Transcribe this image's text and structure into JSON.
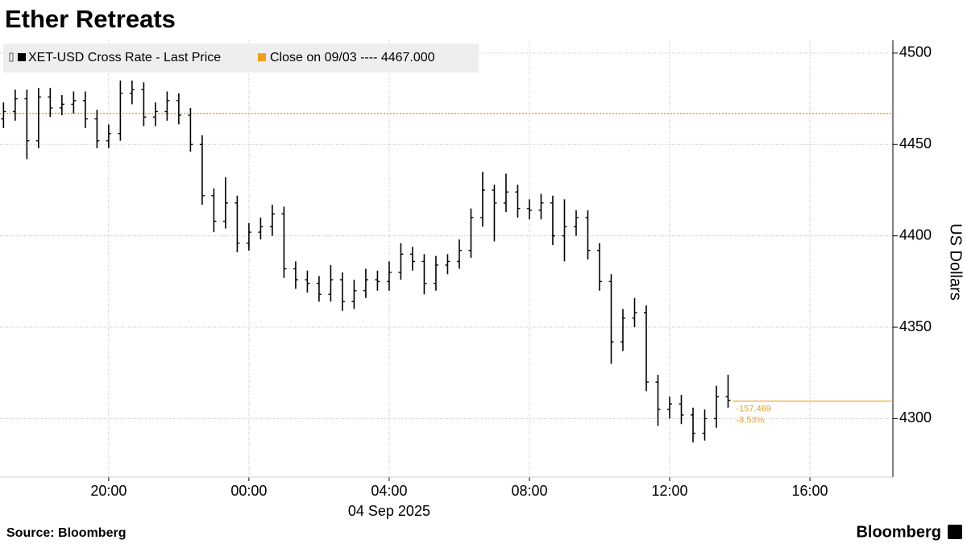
{
  "chart_data": {
    "type": "ohlc",
    "title": "Ether Retreats",
    "source": "Source: Bloomberg",
    "brand": "Bloomberg",
    "y_axis_label": "US Dollars",
    "x_date_label": "04 Sep 2025",
    "x": [
      "2025-09-03T17:00",
      "2025-09-03T17:20",
      "2025-09-03T17:40",
      "2025-09-03T18:00",
      "2025-09-03T18:20",
      "2025-09-03T18:40",
      "2025-09-03T19:00",
      "2025-09-03T19:20",
      "2025-09-03T19:40",
      "2025-09-03T20:00",
      "2025-09-03T20:20",
      "2025-09-03T20:40",
      "2025-09-03T21:00",
      "2025-09-03T21:20",
      "2025-09-03T21:40",
      "2025-09-03T22:00",
      "2025-09-03T22:20",
      "2025-09-03T22:40",
      "2025-09-03T23:00",
      "2025-09-03T23:20",
      "2025-09-03T23:40",
      "2025-09-04T00:00",
      "2025-09-04T00:20",
      "2025-09-04T00:40",
      "2025-09-04T01:00",
      "2025-09-04T01:20",
      "2025-09-04T01:40",
      "2025-09-04T02:00",
      "2025-09-04T02:20",
      "2025-09-04T02:40",
      "2025-09-04T03:00",
      "2025-09-04T03:20",
      "2025-09-04T03:40",
      "2025-09-04T04:00",
      "2025-09-04T04:20",
      "2025-09-04T04:40",
      "2025-09-04T05:00",
      "2025-09-04T05:20",
      "2025-09-04T05:40",
      "2025-09-04T06:00",
      "2025-09-04T06:20",
      "2025-09-04T06:40",
      "2025-09-04T07:00",
      "2025-09-04T07:20",
      "2025-09-04T07:40",
      "2025-09-04T08:00",
      "2025-09-04T08:20",
      "2025-09-04T08:40",
      "2025-09-04T09:00",
      "2025-09-04T09:20",
      "2025-09-04T09:40",
      "2025-09-04T10:00",
      "2025-09-04T10:20",
      "2025-09-04T10:40",
      "2025-09-04T11:00",
      "2025-09-04T11:20",
      "2025-09-04T11:40",
      "2025-09-04T12:00",
      "2025-09-04T12:20",
      "2025-09-04T12:40",
      "2025-09-04T13:00",
      "2025-09-04T13:20",
      "2025-09-04T13:40"
    ],
    "series": [
      {
        "name": "XET-USD Cross Rate - Last Price",
        "color": "#000000",
        "open": [
          4464,
          4468,
          4475,
          4452,
          4476,
          4470,
          4472,
          4474,
          4464,
          4452,
          4456,
          4478,
          4480,
          4465,
          4468,
          4474,
          4466,
          4450,
          4422,
          4408,
          4418,
          4396,
          4402,
          4405,
          4412,
          4382,
          4376,
          4374,
          4368,
          4376,
          4364,
          4370,
          4376,
          4375,
          4380,
          4390,
          4386,
          4374,
          4384,
          4386,
          4392,
          4410,
          4425,
          4418,
          4424,
          4415,
          4414,
          4418,
          4400,
          4405,
          4410,
          4392,
          4375,
          4342,
          4355,
          4358,
          4320,
          4305,
          4308,
          4302,
          4292,
          4300,
          4312
        ],
        "high": [
          4473,
          4480,
          4480,
          4481,
          4481,
          4477,
          4479,
          4479,
          4469,
          4461,
          4485,
          4485,
          4484,
          4473,
          4479,
          4478,
          4470,
          4455,
          4426,
          4432,
          4422,
          4407,
          4410,
          4417,
          4416,
          4386,
          4381,
          4378,
          4384,
          4380,
          4376,
          4382,
          4381,
          4386,
          4396,
          4394,
          4390,
          4389,
          4390,
          4398,
          4415,
          4435,
          4428,
          4434,
          4428,
          4420,
          4423,
          4422,
          4420,
          4414,
          4414,
          4396,
          4379,
          4360,
          4366,
          4362,
          4324,
          4312,
          4313,
          4306,
          4305,
          4318,
          4324
        ],
        "low": [
          4459,
          4463,
          4442,
          4448,
          4465,
          4466,
          4467,
          4459,
          4448,
          4448,
          4452,
          4472,
          4460,
          4460,
          4463,
          4461,
          4446,
          4417,
          4402,
          4404,
          4391,
          4392,
          4398,
          4400,
          4377,
          4371,
          4369,
          4364,
          4364,
          4359,
          4360,
          4366,
          4370,
          4370,
          4376,
          4381,
          4368,
          4370,
          4379,
          4382,
          4388,
          4405,
          4397,
          4413,
          4410,
          4409,
          4409,
          4395,
          4386,
          4400,
          4387,
          4370,
          4330,
          4337,
          4350,
          4315,
          4296,
          4300,
          4297,
          4287,
          4288,
          4295,
          4306
        ],
        "close": [
          4468,
          4475,
          4452,
          4476,
          4470,
          4472,
          4474,
          4464,
          4452,
          4456,
          4478,
          4480,
          4465,
          4468,
          4474,
          4466,
          4450,
          4422,
          4408,
          4418,
          4396,
          4402,
          4405,
          4412,
          4382,
          4376,
          4374,
          4368,
          4376,
          4364,
          4370,
          4376,
          4375,
          4380,
          4390,
          4386,
          4374,
          4384,
          4386,
          4392,
          4410,
          4425,
          4418,
          4424,
          4415,
          4414,
          4418,
          4400,
          4405,
          4410,
          4392,
          4375,
          4342,
          4355,
          4358,
          4320,
          4305,
          4308,
          4302,
          4292,
          4300,
          4312,
          4310
        ]
      }
    ],
    "reference_line": {
      "name": "Close on 09/03 ---- 4467.000",
      "value": 4467,
      "color": "#f0a020"
    },
    "last_price_line": {
      "value": 4309.531,
      "color": "#f0a020",
      "labels": [
        "-157.469",
        "-3.53%"
      ]
    },
    "xlim": [
      "2025-09-03T16:54",
      "2025-09-04T18:22"
    ],
    "xticks": [
      {
        "value": "2025-09-03T20:00",
        "label": "20:00"
      },
      {
        "value": "2025-09-04T00:00",
        "label": "00:00"
      },
      {
        "value": "2025-09-04T04:00",
        "label": "04:00"
      },
      {
        "value": "2025-09-04T08:00",
        "label": "08:00"
      },
      {
        "value": "2025-09-04T12:00",
        "label": "12:00"
      },
      {
        "value": "2025-09-04T16:00",
        "label": "16:00"
      }
    ],
    "ylim": [
      4268,
      4507
    ],
    "yticks": [
      4300,
      4350,
      4400,
      4450,
      4500
    ],
    "grid": true
  }
}
